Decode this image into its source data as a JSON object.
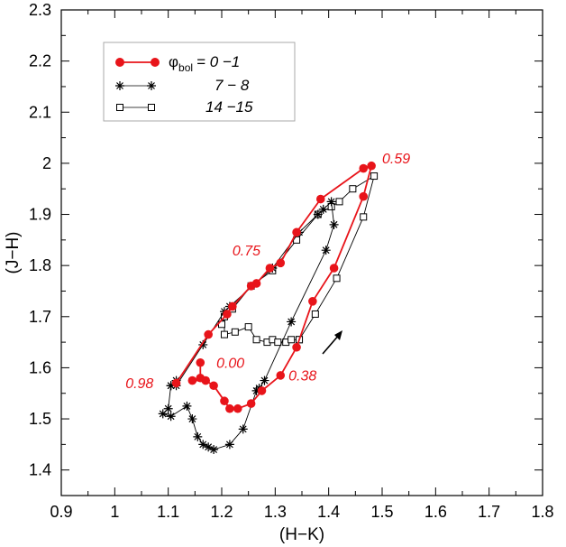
{
  "chart_data": {
    "type": "scatter",
    "xlabel": "(H−K)",
    "ylabel": "(J−H)",
    "xlim": [
      0.9,
      1.8
    ],
    "ylim": [
      1.35,
      2.3
    ],
    "xticks": [
      "0.9",
      "1",
      "1.1",
      "1.2",
      "1.3",
      "1.4",
      "1.5",
      "1.6",
      "1.7",
      "1.8"
    ],
    "yticks": [
      "1.4",
      "1.5",
      "1.6",
      "1.7",
      "1.8",
      "1.9",
      "2",
      "2.1",
      "2.2",
      "2.3"
    ],
    "grid": false,
    "legend_position": "top-left",
    "legend": {
      "symbol": "φ",
      "subscript": "bol",
      "entries": [
        "= 0 −1",
        "7 − 8",
        "14 −15"
      ]
    },
    "series": [
      {
        "label": "φbol = 0 −1",
        "marker": "filled-circle",
        "color": "#e8141a",
        "points": [
          [
            1.16,
            1.61
          ],
          [
            1.16,
            1.58
          ],
          [
            1.145,
            1.575
          ],
          [
            1.17,
            1.575
          ],
          [
            1.185,
            1.565
          ],
          [
            1.205,
            1.535
          ],
          [
            1.215,
            1.52
          ],
          [
            1.23,
            1.52
          ],
          [
            1.255,
            1.53
          ],
          [
            1.275,
            1.555
          ],
          [
            1.31,
            1.585
          ],
          [
            1.34,
            1.64
          ],
          [
            1.37,
            1.73
          ],
          [
            1.41,
            1.795
          ],
          [
            1.465,
            1.935
          ],
          [
            1.48,
            1.995
          ],
          [
            1.465,
            1.99
          ],
          [
            1.385,
            1.93
          ],
          [
            1.34,
            1.865
          ],
          [
            1.31,
            1.805
          ],
          [
            1.29,
            1.795
          ],
          [
            1.265,
            1.765
          ],
          [
            1.255,
            1.76
          ],
          [
            1.22,
            1.72
          ],
          [
            1.21,
            1.705
          ],
          [
            1.175,
            1.665
          ],
          [
            1.115,
            1.57
          ]
        ]
      },
      {
        "label": "7 − 8",
        "marker": "asterisk",
        "color": "#000000",
        "points": [
          [
            1.115,
            1.575
          ],
          [
            1.105,
            1.565
          ],
          [
            1.1,
            1.52
          ],
          [
            1.09,
            1.51
          ],
          [
            1.105,
            1.505
          ],
          [
            1.135,
            1.525
          ],
          [
            1.145,
            1.5
          ],
          [
            1.155,
            1.465
          ],
          [
            1.165,
            1.45
          ],
          [
            1.175,
            1.445
          ],
          [
            1.185,
            1.44
          ],
          [
            1.215,
            1.45
          ],
          [
            1.24,
            1.48
          ],
          [
            1.265,
            1.555
          ],
          [
            1.27,
            1.56
          ],
          [
            1.28,
            1.575
          ],
          [
            1.33,
            1.69
          ],
          [
            1.395,
            1.83
          ],
          [
            1.41,
            1.88
          ],
          [
            1.405,
            1.925
          ],
          [
            1.39,
            1.91
          ],
          [
            1.38,
            1.9
          ],
          [
            1.345,
            1.865
          ],
          [
            1.295,
            1.795
          ],
          [
            1.215,
            1.72
          ],
          [
            1.205,
            1.71
          ],
          [
            1.165,
            1.645
          ],
          [
            1.115,
            1.565
          ],
          [
            1.105,
            1.565
          ]
        ]
      },
      {
        "label": "14 −15",
        "marker": "open-square",
        "color": "#000000",
        "points": [
          [
            1.345,
            1.655
          ],
          [
            1.375,
            1.705
          ],
          [
            1.415,
            1.775
          ],
          [
            1.465,
            1.895
          ],
          [
            1.485,
            1.975
          ],
          [
            1.445,
            1.95
          ],
          [
            1.42,
            1.925
          ],
          [
            1.405,
            1.915
          ],
          [
            1.38,
            1.9
          ],
          [
            1.34,
            1.85
          ],
          [
            1.295,
            1.79
          ],
          [
            1.255,
            1.76
          ],
          [
            1.22,
            1.715
          ],
          [
            1.2,
            1.685
          ],
          [
            1.205,
            1.7
          ],
          [
            1.205,
            1.665
          ],
          [
            1.225,
            1.67
          ],
          [
            1.25,
            1.68
          ],
          [
            1.265,
            1.655
          ],
          [
            1.285,
            1.65
          ],
          [
            1.295,
            1.655
          ],
          [
            1.305,
            1.65
          ],
          [
            1.32,
            1.65
          ],
          [
            1.33,
            1.655
          ],
          [
            1.345,
            1.655
          ]
        ]
      }
    ],
    "annotations": [
      {
        "text": "0.59",
        "x": 1.5,
        "y": 2.0
      },
      {
        "text": "0.75",
        "x": 1.22,
        "y": 1.82
      },
      {
        "text": "0.00",
        "x": 1.19,
        "y": 1.6
      },
      {
        "text": "0.38",
        "x": 1.325,
        "y": 1.575
      },
      {
        "text": "0.98",
        "x": 1.02,
        "y": 1.56
      }
    ]
  }
}
